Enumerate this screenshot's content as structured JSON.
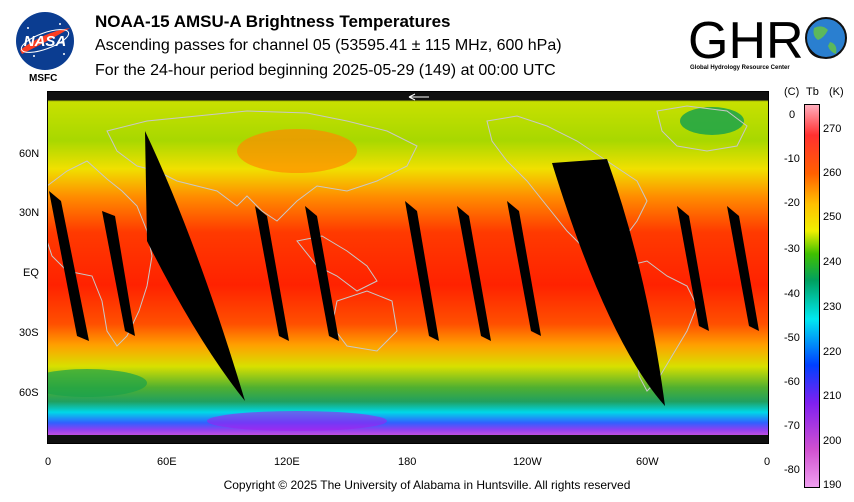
{
  "header": {
    "title": "NOAA-15 AMSU-A Brightness Temperatures",
    "subtitle": "Ascending passes for channel 05 (53595.41 ± 115 MHz, 600 hPa)",
    "period": "For the 24-hour period beginning 2025-05-29 (149) at 00:00 UTC"
  },
  "logos": {
    "nasa_wordmark": "NASA",
    "nasa_center": "MSFC",
    "ghrc_wordmark": "GHRC",
    "ghrc_name": "Global Hydrology Resource Center"
  },
  "map": {
    "lat_labels": [
      "60N",
      "30N",
      "EQ",
      "30S",
      "60S"
    ],
    "lon_labels": [
      "0",
      "60E",
      "120E",
      "180",
      "120W",
      "60W",
      "0"
    ],
    "background_colors": [
      "#ff2a00",
      "#ff8c00",
      "#e8e000",
      "#a0d000",
      "#1aa34a",
      "#00e0f0",
      "#7a28ff",
      "#b040e0"
    ],
    "swath_color": "#000000",
    "coastline_color": "#c0c0c0"
  },
  "colorbar": {
    "unit_c": "(C)",
    "variable": "Tb",
    "unit_k": "(K)",
    "celsius_ticks": [
      "0",
      "-10",
      "-20",
      "-30",
      "-40",
      "-50",
      "-60",
      "-70",
      "-80"
    ],
    "kelvin_ticks": [
      "270",
      "260",
      "250",
      "240",
      "230",
      "220",
      "210",
      "200",
      "190"
    ],
    "scale_colors": [
      "#ffb0c0",
      "#ff3030",
      "#ff6000",
      "#ffc000",
      "#f0f000",
      "#40c000",
      "#00a060",
      "#00e8f0",
      "#0040ff",
      "#8020f0",
      "#d050d0",
      "#f0a0f0"
    ]
  },
  "footer": {
    "copyright": "Copyright © 2025 The University of Alabama in Huntsville.  All rights reserved"
  }
}
